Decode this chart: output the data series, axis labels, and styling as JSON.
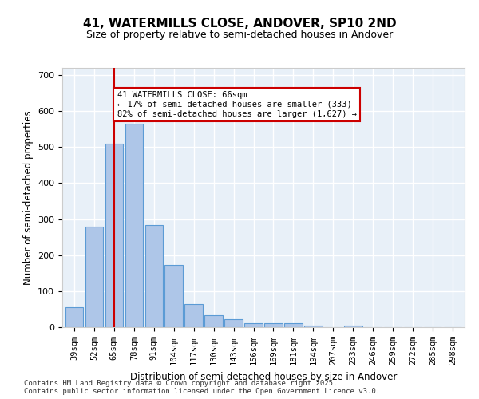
{
  "title": "41, WATERMILLS CLOSE, ANDOVER, SP10 2ND",
  "subtitle": "Size of property relative to semi-detached houses in Andover",
  "xlabel": "Distribution of semi-detached houses by size in Andover",
  "ylabel": "Number of semi-detached properties",
  "categories": [
    "39sqm",
    "52sqm",
    "65sqm",
    "78sqm",
    "91sqm",
    "104sqm",
    "117sqm",
    "130sqm",
    "143sqm",
    "156sqm",
    "169sqm",
    "181sqm",
    "194sqm",
    "207sqm",
    "233sqm",
    "246sqm",
    "259sqm",
    "272sqm",
    "285sqm",
    "298sqm"
  ],
  "values": [
    55,
    280,
    510,
    565,
    283,
    172,
    65,
    33,
    23,
    11,
    10,
    11,
    5,
    0,
    5,
    0,
    0,
    0,
    0,
    0
  ],
  "bar_color": "#aec6e8",
  "bar_edge_color": "#5b9bd5",
  "property_line_x": 2,
  "property_value": 66,
  "annotation_text": "41 WATERMILLS CLOSE: 66sqm\n← 17% of semi-detached houses are smaller (333)\n82% of semi-detached houses are larger (1,627) →",
  "annotation_box_color": "#ffffff",
  "annotation_box_edge": "#cc0000",
  "vline_color": "#cc0000",
  "ylim": [
    0,
    720
  ],
  "yticks": [
    0,
    100,
    200,
    300,
    400,
    500,
    600,
    700
  ],
  "bg_color": "#e8f0f8",
  "grid_color": "#ffffff",
  "footer_text": "Contains HM Land Registry data © Crown copyright and database right 2025.\nContains public sector information licensed under the Open Government Licence v3.0.",
  "title_fontsize": 11,
  "subtitle_fontsize": 9,
  "tick_fontsize": 7.5,
  "label_fontsize": 8.5
}
